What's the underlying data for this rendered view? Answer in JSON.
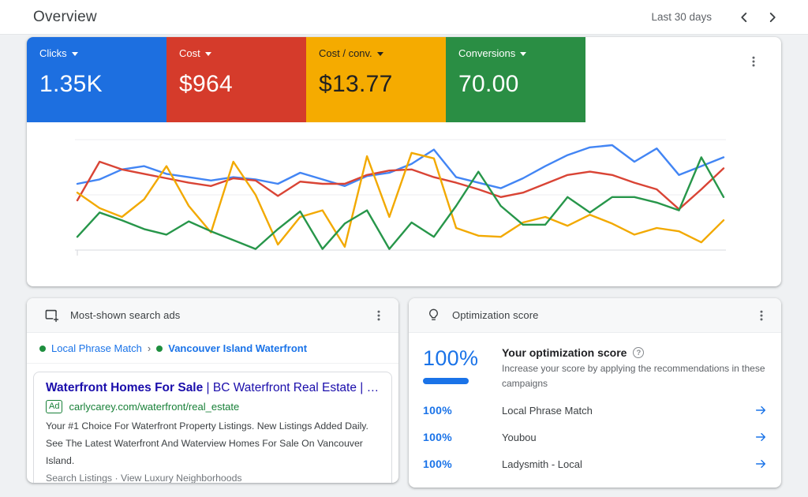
{
  "header": {
    "title": "Overview",
    "date_range": "Last 30 days"
  },
  "scorecards": {
    "cards": [
      {
        "label": "Clicks",
        "value": "1.35K",
        "color": "#1d6fe0",
        "text_color": "#ffffff"
      },
      {
        "label": "Cost",
        "value": "$964",
        "color": "#d53b2b",
        "text_color": "#ffffff"
      },
      {
        "label": "Cost / conv.",
        "value": "$13.77",
        "color": "#f5ab00",
        "text_color": "#212121"
      },
      {
        "label": "Conversions",
        "value": "70.00",
        "color": "#2a8e44",
        "text_color": "#ffffff"
      }
    ]
  },
  "chart_data": {
    "type": "line",
    "title": "",
    "xlabel": "",
    "ylabel": "",
    "x_points": 30,
    "ylim": [
      0,
      100
    ],
    "grid": true,
    "legend_position": "none",
    "axis_tick_labels_visible": false,
    "note": "Google Ads overview trend chart for the last 30 days; axes unlabeled in UI, values are relative heights (percent of plot height)",
    "series": [
      {
        "name": "Clicks",
        "color": "#4285f4",
        "values": [
          60,
          64,
          73,
          76,
          69,
          66,
          63,
          66,
          64,
          60,
          70,
          64,
          58,
          67,
          70,
          78,
          91,
          66,
          61,
          56,
          65,
          76,
          86,
          93,
          95,
          80,
          92,
          68,
          76,
          84
        ]
      },
      {
        "name": "Cost",
        "color": "#d94435",
        "values": [
          45,
          80,
          73,
          69,
          65,
          61,
          58,
          65,
          63,
          49,
          62,
          60,
          60,
          68,
          72,
          73,
          66,
          61,
          55,
          48,
          52,
          60,
          68,
          71,
          68,
          61,
          55,
          37,
          55,
          74
        ]
      },
      {
        "name": "Cost / conv.",
        "color": "#f2a900",
        "values": [
          52,
          38,
          30,
          46,
          76,
          40,
          16,
          80,
          50,
          5,
          30,
          36,
          3,
          85,
          30,
          88,
          83,
          20,
          13,
          12,
          25,
          30,
          22,
          32,
          24,
          14,
          20,
          17,
          7,
          27
        ]
      },
      {
        "name": "Conversions",
        "color": "#27964a",
        "values": [
          12,
          34,
          27,
          19,
          14,
          26,
          17,
          9,
          1,
          19,
          35,
          1,
          24,
          36,
          1,
          25,
          12,
          40,
          71,
          40,
          23,
          23,
          48,
          34,
          48,
          48,
          43,
          36,
          84,
          48
        ]
      }
    ]
  },
  "search_ads_card": {
    "title": "Most-shown search ads",
    "breadcrumb": {
      "campaign": "Local Phrase Match",
      "separator": "›",
      "ad_group": "Vancouver Island Waterfront"
    },
    "ad": {
      "title_primary": "Waterfront Homes For Sale",
      "title_secondary": " | BC Waterfront Real Estate | Waterf…",
      "badge": "Ad",
      "display_url": "carlycarey.com/waterfront/real_estate",
      "description": "Your #1 Choice For Waterfront Property Listings. New Listings Added Daily. See The Latest Waterfront And Waterview Homes For Sale On Vancouver Island.",
      "sitelinks": "Search Listings · View Luxury Neighborhoods"
    }
  },
  "optimization_card": {
    "title": "Optimization score",
    "score": "100%",
    "headline": "Your optimization score",
    "help_glyph": "?",
    "description": "Increase your score by applying the recommendations in these campaigns",
    "rows": [
      {
        "score": "100%",
        "label": "Local Phrase Match"
      },
      {
        "score": "100%",
        "label": "Youbou"
      },
      {
        "score": "100%",
        "label": "Ladysmith - Local"
      }
    ]
  }
}
